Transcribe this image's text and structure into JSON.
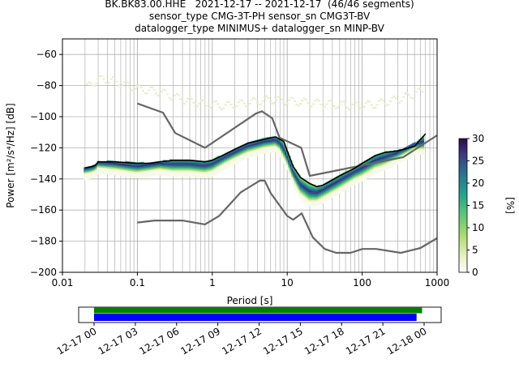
{
  "title_lines": [
    "BK.BK83.00.HHE   2021-12-17 -- 2021-12-17  (46/46 segments)",
    "sensor_type CMG-3T-PH sensor_sn CMG3T-BV",
    "datalogger_type MINIMUS+ datalogger_sn MINP-BV"
  ],
  "chart_data": [
    {
      "type": "heatmap",
      "xlabel": "Period [s]",
      "ylabel": "Power [m²/s⁴/Hz] [dB]",
      "xscale": "log",
      "xlim": [
        0.01,
        1000
      ],
      "ylim": [
        -200,
        -50
      ],
      "xticks": [
        "0.01",
        "0.1",
        "1",
        "10",
        "100",
        "1000"
      ],
      "yticks": [
        "−200",
        "−180",
        "−160",
        "−140",
        "−120",
        "−100",
        "−80",
        "−60"
      ],
      "grid": true,
      "colorbar": {
        "label": "[%]",
        "range": [
          0,
          30
        ],
        "ticks": [
          "0",
          "5",
          "10",
          "15",
          "20",
          "25",
          "30"
        ],
        "colormap": [
          "#ffffff",
          "#e8f0c0",
          "#a9dc6c",
          "#52c47a",
          "#1f9e8c",
          "#2a6e91",
          "#3b3a82",
          "#2d0b4e"
        ]
      },
      "mode_line": {
        "period": [
          0.02,
          0.025,
          0.028,
          0.03,
          0.05,
          0.1,
          0.2,
          0.3,
          0.5,
          0.8,
          1.0,
          1.5,
          2,
          3,
          5,
          7,
          8,
          10,
          12,
          15,
          20,
          25,
          30,
          50,
          80,
          100,
          150,
          200,
          300,
          500,
          700
        ],
        "power": [
          -134,
          -133,
          -132,
          -130,
          -131,
          -133,
          -131,
          -132,
          -132,
          -133,
          -132,
          -127,
          -124,
          -120,
          -117,
          -116,
          -118,
          -127,
          -137,
          -146,
          -151,
          -151,
          -149,
          -143,
          -137,
          -135,
          -130,
          -128,
          -124,
          -118,
          -118
        ]
      },
      "upper_bound_line": {
        "period": [
          0.02,
          0.025,
          0.028,
          0.03,
          0.05,
          0.1,
          0.15,
          0.2,
          0.3,
          0.5,
          0.8,
          1.0,
          1.5,
          2,
          3,
          4.5,
          5.5,
          7,
          9,
          10,
          12,
          15,
          20,
          25,
          30,
          50,
          80,
          100,
          150,
          200,
          300,
          500,
          700
        ],
        "power": [
          -133,
          -132,
          -131,
          -129,
          -129,
          -130,
          -130,
          -129,
          -128,
          -128,
          -129,
          -128,
          -124,
          -121,
          -117,
          -115,
          -114,
          -113,
          -116,
          -122,
          -132,
          -139,
          -143,
          -145,
          -144,
          -138,
          -133,
          -130,
          -125,
          -123,
          -122,
          -119,
          -111
        ]
      },
      "nhnm": {
        "period": [
          0.1,
          0.22,
          0.32,
          0.8,
          3.8,
          4.6,
          6.3,
          7.9,
          15.4,
          20,
          354,
          1000
        ],
        "power": [
          -91.5,
          -97.4,
          -110.5,
          -120,
          -98,
          -96.5,
          -101,
          -113.5,
          -120,
          -138,
          -126,
          -112
        ]
      },
      "nlnm": {
        "period": [
          0.1,
          0.17,
          0.4,
          0.8,
          1.24,
          2.4,
          4.3,
          5,
          6,
          10,
          12,
          15.6,
          21.9,
          31.6,
          45,
          70,
          101,
          154,
          328,
          600,
          1000
        ],
        "power": [
          -168,
          -166.7,
          -166.7,
          -169.2,
          -163.7,
          -148.6,
          -141.1,
          -141.1,
          -149,
          -163.8,
          -166.2,
          -162.1,
          -177.5,
          -185,
          -187.5,
          -187.5,
          -185,
          -185,
          -187.5,
          -184.4,
          -178
        ]
      },
      "faint_upper_band": {
        "period": [
          0.02,
          0.03,
          0.05,
          0.1,
          0.2,
          0.4,
          0.8,
          1.5,
          3,
          6,
          10,
          20,
          40,
          80,
          150,
          300,
          600
        ],
        "power": [
          -82,
          -76,
          -77,
          -82,
          -84,
          -89,
          -92,
          -93,
          -91,
          -89,
          -90,
          -91,
          -92,
          -93,
          -92,
          -89,
          -84
        ]
      }
    },
    {
      "type": "timeline",
      "xticks": [
        "12-17 00",
        "12-17 03",
        "12-17 06",
        "12-17 09",
        "12-17 12",
        "12-17 15",
        "12-17 18",
        "12-17 21",
        "12-18 00"
      ],
      "green_bar": {
        "start_hour": 0,
        "end_hour": 23.85
      },
      "blue_bar": {
        "start_hour": 0,
        "end_hour": 23.45
      }
    }
  ]
}
